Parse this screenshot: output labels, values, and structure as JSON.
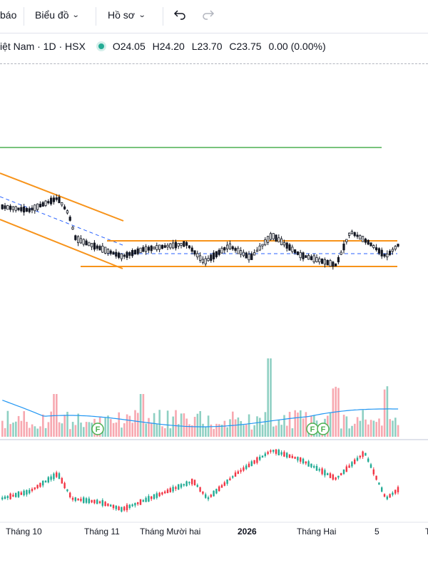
{
  "toolbar": {
    "partial_label": "báo",
    "chart_menu": "Biểu đồ",
    "profile_menu": "Hồ sơ"
  },
  "legend": {
    "symbol": "iệt Nam · 1D · HSX",
    "open": "O24.05",
    "high": "H24.20",
    "low": "L23.70",
    "close": "C23.75",
    "change": "0.00 (0.00%)",
    "status_color": "#22ab94"
  },
  "x_axis": {
    "labels": [
      "Tháng 10",
      "Tháng 11",
      "Tháng Mười hai",
      "2026",
      "Tháng Hai",
      "5",
      "T"
    ]
  },
  "colors": {
    "up": "#22ab94",
    "down": "#f23645",
    "vol_up": "#8fd0c3",
    "vol_down": "#f7a8b0",
    "channel": "#f7931a",
    "green_line": "#4caf50",
    "ma": "#2196f3"
  },
  "markers": [
    "F",
    "F",
    "F"
  ],
  "chart_data": {
    "type": "candlestick",
    "panes": [
      "price",
      "volume",
      "indicator"
    ],
    "last_bar": {
      "open": 24.05,
      "high": 24.2,
      "low": 23.7,
      "close": 23.75
    }
  }
}
